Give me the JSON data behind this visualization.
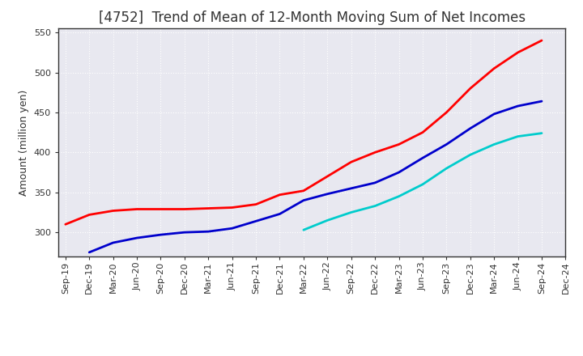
{
  "title": "[4752]  Trend of Mean of 12-Month Moving Sum of Net Incomes",
  "ylabel": "Amount (million yen)",
  "ylim": [
    270,
    555
  ],
  "yticks": [
    300,
    350,
    400,
    450,
    500,
    550
  ],
  "plot_bg_color": "#E8E8F0",
  "fig_bg_color": "#FFFFFF",
  "grid_color": "#FFFFFF",
  "title_fontsize": 12,
  "title_color": "#333333",
  "axis_fontsize": 9,
  "tick_fontsize": 8,
  "legend_fontsize": 9,
  "x_labels": [
    "Sep-19",
    "Dec-19",
    "Mar-20",
    "Jun-20",
    "Sep-20",
    "Dec-20",
    "Mar-21",
    "Jun-21",
    "Sep-21",
    "Dec-21",
    "Mar-22",
    "Jun-22",
    "Sep-22",
    "Dec-22",
    "Mar-23",
    "Jun-23",
    "Sep-23",
    "Dec-23",
    "Mar-24",
    "Jun-24",
    "Sep-24",
    "Dec-24"
  ],
  "series": {
    "3 Years": {
      "color": "#FF0000",
      "linewidth": 2.0,
      "data_x": [
        0,
        1,
        2,
        3,
        4,
        5,
        6,
        7,
        8,
        9,
        10,
        11,
        12,
        13,
        14,
        15,
        16,
        17,
        18,
        19,
        20
      ],
      "data_y": [
        310,
        322,
        327,
        329,
        329,
        329,
        330,
        331,
        335,
        347,
        352,
        370,
        388,
        400,
        410,
        425,
        450,
        480,
        505,
        525,
        540
      ]
    },
    "5 Years": {
      "color": "#0000CC",
      "linewidth": 2.0,
      "data_x": [
        1,
        2,
        3,
        4,
        5,
        6,
        7,
        8,
        9,
        10,
        11,
        12,
        13,
        14,
        15,
        16,
        17,
        18,
        19,
        20
      ],
      "data_y": [
        275,
        287,
        293,
        297,
        300,
        301,
        305,
        314,
        323,
        340,
        348,
        355,
        362,
        375,
        393,
        410,
        430,
        448,
        458,
        464
      ]
    },
    "7 Years": {
      "color": "#00CCCC",
      "linewidth": 2.0,
      "data_x": [
        10,
        11,
        12,
        13,
        14,
        15,
        16,
        17,
        18,
        19,
        20
      ],
      "data_y": [
        303,
        315,
        325,
        333,
        345,
        360,
        380,
        397,
        410,
        420,
        424
      ]
    },
    "10 Years": {
      "color": "#008000",
      "linewidth": 2.0,
      "data_x": [],
      "data_y": []
    }
  }
}
